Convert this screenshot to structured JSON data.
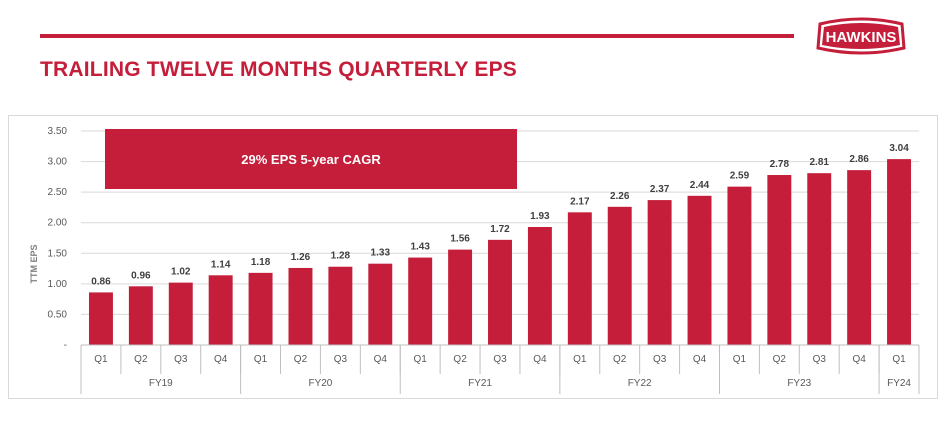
{
  "header": {
    "title": "TRAILING TWELVE MONTHS QUARTERLY EPS",
    "logo_text": "HAWKINS",
    "accent_color": "#c41e3a"
  },
  "chart_data": {
    "type": "bar",
    "ylabel": "TTM EPS",
    "ylim": [
      0,
      3.5
    ],
    "yticks": [
      0,
      0.5,
      1.0,
      1.5,
      2.0,
      2.5,
      3.0,
      3.5
    ],
    "ytick_labels": [
      "-",
      "0.50",
      "1.00",
      "1.50",
      "2.00",
      "2.50",
      "3.00",
      "3.50"
    ],
    "grid": true,
    "bar_color": "#c41e3a",
    "callout": "29% EPS 5-year CAGR",
    "categories": [
      "Q1",
      "Q2",
      "Q3",
      "Q4",
      "Q1",
      "Q2",
      "Q3",
      "Q4",
      "Q1",
      "Q2",
      "Q3",
      "Q4",
      "Q1",
      "Q2",
      "Q3",
      "Q4",
      "Q1",
      "Q2",
      "Q3",
      "Q4",
      "Q1"
    ],
    "values": [
      0.86,
      0.96,
      1.02,
      1.14,
      1.18,
      1.26,
      1.28,
      1.33,
      1.43,
      1.56,
      1.72,
      1.93,
      2.17,
      2.26,
      2.37,
      2.44,
      2.59,
      2.78,
      2.81,
      2.86,
      3.04
    ],
    "data_labels": [
      "0.86",
      "0.96",
      "1.02",
      "1.14",
      "1.18",
      "1.26",
      "1.28",
      "1.33",
      "1.43",
      "1.56",
      "1.72",
      "1.93",
      "2.17",
      "2.26",
      "2.37",
      "2.44",
      "2.59",
      "2.78",
      "2.81",
      "2.86",
      "3.04"
    ],
    "groups": [
      {
        "label": "FY19",
        "count": 4
      },
      {
        "label": "FY20",
        "count": 4
      },
      {
        "label": "FY21",
        "count": 4
      },
      {
        "label": "FY22",
        "count": 4
      },
      {
        "label": "FY23",
        "count": 4
      },
      {
        "label": "FY24",
        "count": 1
      }
    ]
  }
}
